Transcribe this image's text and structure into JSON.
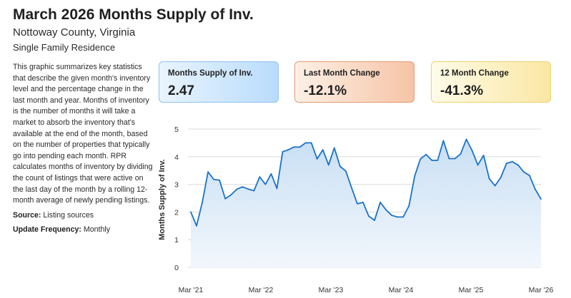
{
  "header": {
    "title": "March 2026 Months Supply of Inv.",
    "subtitle": "Nottoway County, Virginia",
    "property_type": "Single Family Residence"
  },
  "description": "This graphic summarizes key statistics that describe the given month's inventory level and the percentage change in the last month and year. Months of inventory is the number of months it will take a market to absorb the inventory that's available at the end of the month, based on the number of properties that typically go into pending each month. RPR calculates months of inventory by dividing the count of listings that were active on the last day of the month by a rolling 12-month average of newly pending listings.",
  "source": {
    "label": "Source:",
    "value": "Listing sources"
  },
  "update": {
    "label": "Update Frequency:",
    "value": "Monthly"
  },
  "cards": [
    {
      "label": "Months Supply of Inv.",
      "value": "2.47"
    },
    {
      "label": "Last Month Change",
      "value": "-12.1%"
    },
    {
      "label": "12 Month Change",
      "value": "-41.3%"
    }
  ],
  "colors": {
    "line": "#1a73c8",
    "fill_top": "#c9dff4",
    "fill_bottom": "#f2f7fc",
    "grid": "#dcdcdc"
  },
  "chart_data": {
    "type": "area",
    "title": "",
    "xlabel": "",
    "ylabel": "Months Supply of Inv.",
    "ylim": [
      0,
      5
    ],
    "yticks": [
      0,
      1,
      2,
      3,
      4,
      5
    ],
    "xtick_labels": [
      "Mar '21",
      "Mar '22",
      "Mar '23",
      "Mar '24",
      "Mar '25",
      "Mar '26"
    ],
    "x_start": "Mar '21",
    "x_end": "Mar '26",
    "values": [
      2.0,
      1.5,
      2.35,
      3.45,
      3.18,
      3.15,
      2.48,
      2.62,
      2.82,
      2.91,
      2.83,
      2.77,
      3.27,
      3.0,
      3.38,
      2.85,
      4.18,
      4.25,
      4.35,
      4.35,
      4.5,
      4.5,
      3.92,
      4.25,
      3.7,
      4.32,
      3.65,
      3.48,
      2.88,
      2.3,
      2.35,
      1.85,
      1.7,
      2.35,
      2.08,
      1.88,
      1.82,
      1.82,
      2.22,
      3.3,
      3.92,
      4.08,
      3.87,
      3.87,
      4.58,
      3.93,
      3.93,
      4.1,
      4.63,
      4.22,
      3.7,
      4.05,
      3.2,
      2.95,
      3.25,
      3.76,
      3.82,
      3.7,
      3.45,
      3.32,
      2.82,
      2.47
    ]
  }
}
